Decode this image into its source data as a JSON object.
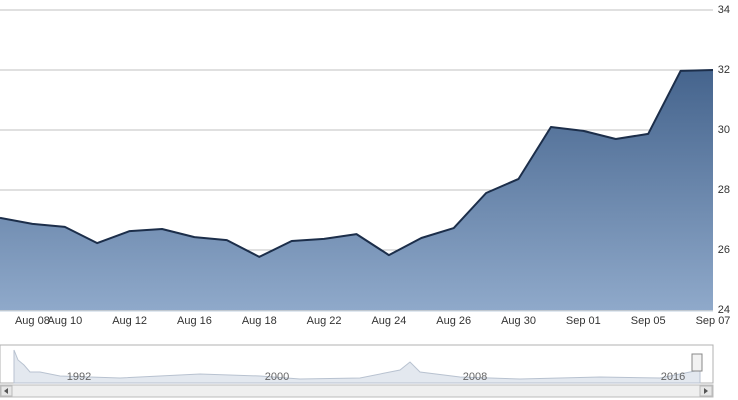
{
  "chart_data": {
    "type": "area",
    "categories": [
      null,
      "Aug 08",
      "Aug 10",
      null,
      "Aug 12",
      null,
      "Aug 16",
      null,
      "Aug 18",
      null,
      "Aug 22",
      null,
      "Aug 24",
      null,
      "Aug 26",
      null,
      "Aug 30",
      null,
      "Sep 01",
      null,
      "Sep 05",
      null,
      "Sep 07"
    ],
    "series": [
      {
        "color": "#1c2e4a",
        "values": [
          27.07,
          26.87,
          26.77,
          26.23,
          26.63,
          26.7,
          26.43,
          26.33,
          25.77,
          26.3,
          26.37,
          26.53,
          25.83,
          26.4,
          26.73,
          27.9,
          28.37,
          30.1,
          29.97,
          29.7,
          29.87,
          31.97,
          32.0
        ]
      }
    ],
    "ylim": [
      24,
      34
    ],
    "yticks": [
      24,
      26,
      28,
      30,
      32,
      34
    ],
    "grid": true,
    "navigator_labels": [
      "1992",
      "2000",
      "2008",
      "2016"
    ]
  }
}
